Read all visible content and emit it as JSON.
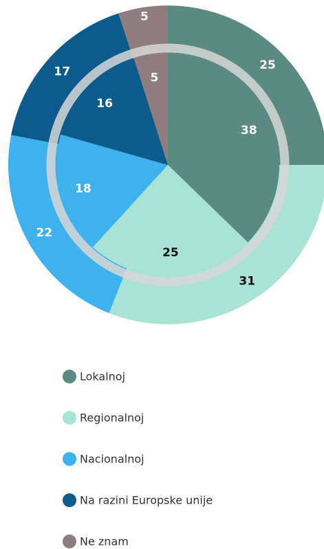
{
  "chart_data": {
    "type": "pie",
    "categories": [
      "Lokalnoj",
      "Regionalnoj",
      "Nacionalnoj",
      "Na razini Europske unije",
      "Ne znam"
    ],
    "colors": [
      "#5b8a82",
      "#a9e3d5",
      "#3fb1ec",
      "#0c5b8c",
      "#8f7c7f"
    ],
    "series": [
      {
        "values": [
          25,
          31,
          22,
          17,
          5
        ]
      },
      {
        "values": [
          38,
          25,
          18,
          16,
          5
        ]
      }
    ]
  }
}
